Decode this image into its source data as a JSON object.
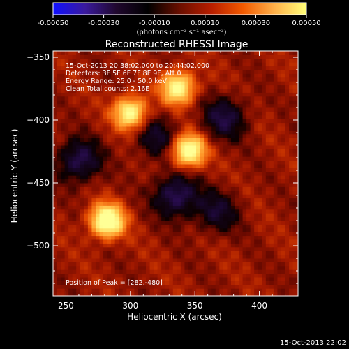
{
  "chart_data": {
    "type": "heatmap",
    "title": "Reconstructed RHESSI Image",
    "xlabel": "Heliocentric X (arcsec)",
    "ylabel": "Heliocentric Y (arcsec)",
    "xlim": [
      240,
      430
    ],
    "ylim": [
      -540,
      -345
    ],
    "xticks": [
      250,
      300,
      350,
      400
    ],
    "yticks": [
      -350,
      -400,
      -450,
      -500
    ],
    "colorbar": {
      "range": [
        -0.0005,
        0.0005
      ],
      "ticks": [
        "-0.00050",
        "-0.00030",
        "-0.00010",
        "0.00010",
        "0.00030",
        "0.00050"
      ],
      "unit_label": "(photons cm⁻² s⁻¹ asec⁻²)",
      "colors": [
        "#1010ff",
        "#3a1a9e",
        "#20082e",
        "#000000",
        "#6a0f00",
        "#b81e00",
        "#f25a00",
        "#ffb14a",
        "#ffff7a"
      ]
    },
    "annotations": [
      "15-Oct-2013 20:38:02.000  to 20:44:02.000",
      "Detectors: 3F 5F 6F 7F 8F 9F, Att 0",
      "Energy Range: 25.0 - 50.0 keV",
      "Clean     Total counts: 2.16E"
    ],
    "peak_label": "Position of Peak = [282,-480]",
    "peak": [
      282,
      -480
    ],
    "sources": [
      {
        "x": 282,
        "y": -480,
        "intensity": 0.0005
      },
      {
        "x": 345,
        "y": -424,
        "intensity": 0.00045
      },
      {
        "x": 300,
        "y": -394,
        "intensity": 0.0004
      },
      {
        "x": 337,
        "y": -374,
        "intensity": 0.0004
      }
    ],
    "negative_regions": [
      {
        "x": 335,
        "y": -460,
        "intensity": -0.00015
      },
      {
        "x": 260,
        "y": -432,
        "intensity": -0.00014
      },
      {
        "x": 373,
        "y": -398,
        "intensity": -0.00012
      },
      {
        "x": 320,
        "y": -414,
        "intensity": -0.0001
      },
      {
        "x": 367,
        "y": -473,
        "intensity": -0.0001
      }
    ],
    "timestamp": "15-Oct-2013 22:02"
  }
}
